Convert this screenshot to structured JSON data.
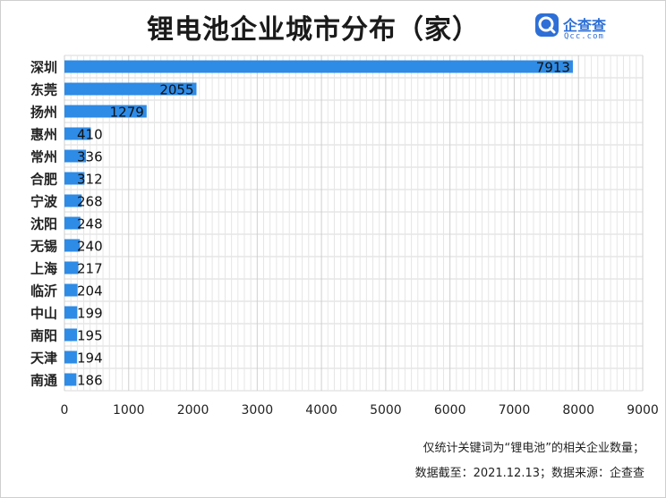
{
  "chart_data": {
    "type": "bar",
    "orientation": "horizontal",
    "title": "锂电池企业城市分布（家）",
    "categories": [
      "深圳",
      "东莞",
      "扬州",
      "惠州",
      "常州",
      "合肥",
      "宁波",
      "沈阳",
      "无锡",
      "上海",
      "临沂",
      "中山",
      "南阳",
      "天津",
      "南通"
    ],
    "values": [
      7913,
      2055,
      1279,
      410,
      336,
      312,
      268,
      248,
      240,
      217,
      204,
      199,
      195,
      194,
      186
    ],
    "xlim": [
      0,
      9000
    ],
    "xticks": [
      "0",
      "1000",
      "2000",
      "3000",
      "4000",
      "5000",
      "6000",
      "7000",
      "8000",
      "9000"
    ],
    "grid": true,
    "bar_color": "#2e8be6"
  },
  "logo": {
    "name": "企查查",
    "sub": "Qcc.com",
    "color": "#2d6fd6"
  },
  "notes": [
    "仅统计关键词为“锂电池”的相关企业数量；",
    "数据截至：2021.12.13；数据来源：企查查"
  ]
}
